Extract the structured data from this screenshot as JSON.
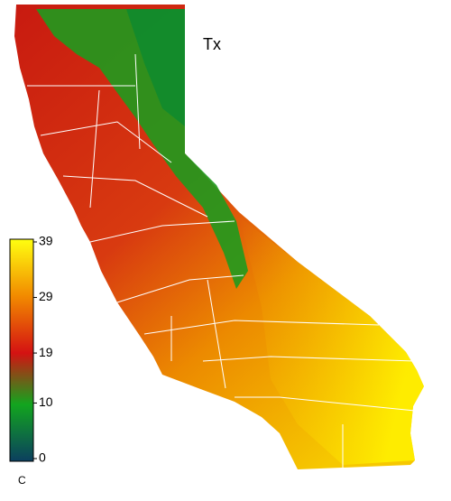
{
  "title": "Tx",
  "colorbar": {
    "lim": [
      0,
      39
    ],
    "ticks": [
      0,
      10,
      19,
      29,
      39
    ],
    "colors": [
      "#0b3f5f",
      "#12a51e",
      "#d41212",
      "#f28a00",
      "#ffff10"
    ],
    "unit": "C"
  }
}
